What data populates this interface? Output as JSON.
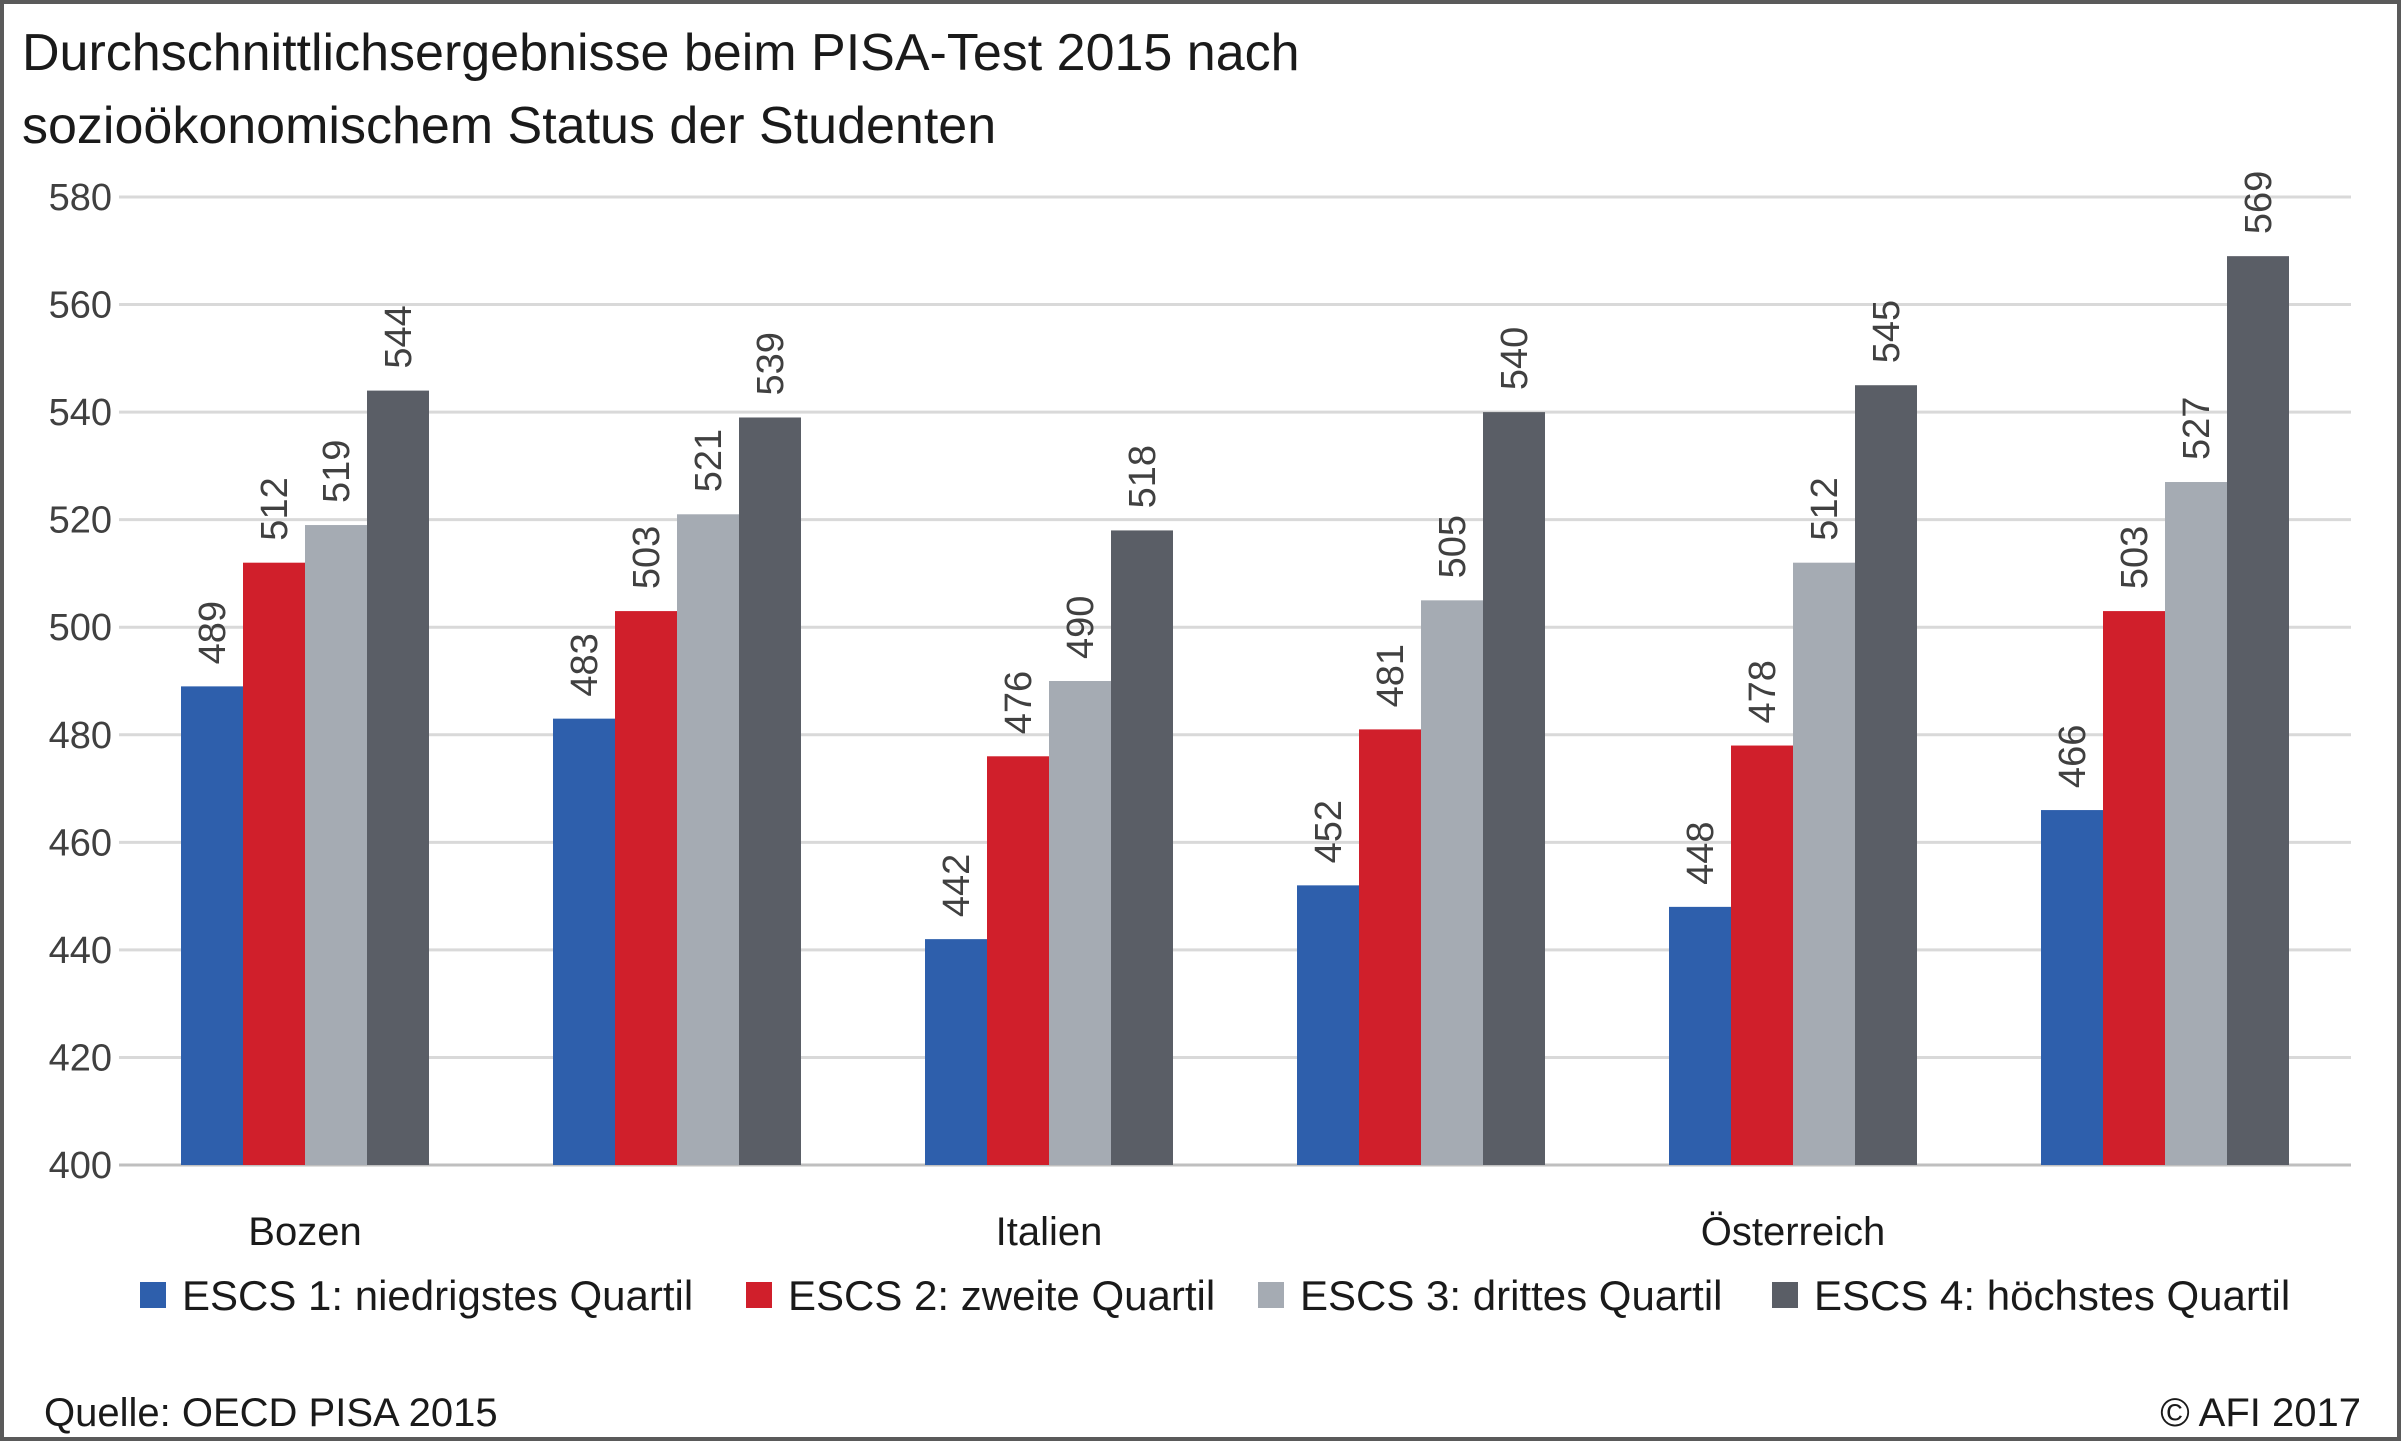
{
  "title_line1": "Durchschnittlichsergebnisse beim PISA-Test 2015 nach",
  "title_line2": "sozioökonomischem Status der Studenten",
  "source": "Quelle: OECD PISA 2015",
  "copyright": "© AFI 2017",
  "chart_data": {
    "type": "bar",
    "title": "Durchschnittlichsergebnisse beim PISA-Test 2015 nach sozioökonomischem Status der Studenten",
    "categories": [
      "Bozen",
      "",
      "Italien",
      "",
      "Österreich",
      ""
    ],
    "ylim": [
      400,
      580
    ],
    "yticks": [
      400,
      420,
      440,
      460,
      480,
      500,
      520,
      540,
      560,
      580
    ],
    "grid": true,
    "legend_position": "bottom",
    "series": [
      {
        "name": "ESCS 1: niedrigstes Quartil",
        "color": "#2e5fac",
        "values": [
          489,
          483,
          442,
          452,
          448,
          466
        ]
      },
      {
        "name": "ESCS 2: zweite Quartil",
        "color": "#d01f2b",
        "values": [
          512,
          503,
          476,
          481,
          478,
          503
        ]
      },
      {
        "name": "ESCS 3: drittes Quartil",
        "color": "#a5abb3",
        "values": [
          519,
          521,
          490,
          505,
          512,
          527
        ]
      },
      {
        "name": "ESCS 4: höchstes Quartil",
        "color": "#5a5e66",
        "values": [
          544,
          539,
          518,
          540,
          545,
          569
        ]
      }
    ]
  }
}
